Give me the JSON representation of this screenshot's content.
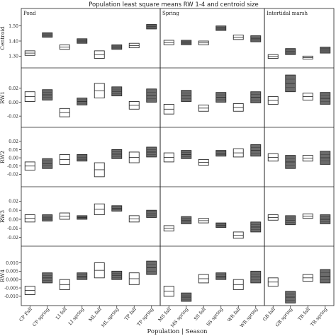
{
  "chart_data": {
    "type": "box",
    "title": "Population least square means RW 1-4 and centroid size",
    "xlabel": "Population | Season",
    "groups": [
      "Pond",
      "Spring",
      "Intertidal marsh"
    ],
    "categories": [
      "CP Fall",
      "CP spring",
      "LI fall",
      "LI spring",
      "ML fall",
      "ML spring",
      "TP fall",
      "TP spring",
      "MS fall",
      "MS spring",
      "SS fall",
      "SS spring",
      "WR fall",
      "WR spring",
      "GB fall",
      "GB spring",
      "TR fall",
      "TR spring"
    ],
    "category_group": [
      0,
      0,
      0,
      0,
      0,
      0,
      0,
      0,
      1,
      1,
      1,
      1,
      1,
      1,
      2,
      2,
      2,
      2
    ],
    "season": [
      "fall",
      "spring",
      "fall",
      "spring",
      "fall",
      "spring",
      "fall",
      "spring",
      "fall",
      "spring",
      "fall",
      "spring",
      "fall",
      "spring",
      "fall",
      "spring",
      "fall",
      "spring"
    ],
    "colors": {
      "spring_fill": "#6b6b6b",
      "spring_line": "#2a2a2a",
      "fall_fill": "#ffffff",
      "fall_line": "#2a2a2a",
      "divider": "#222222",
      "grid": "#dddddd"
    },
    "panels": [
      {
        "name": "Centroid",
        "ylim": [
          1.25,
          1.55
        ],
        "ticks": [
          1.3,
          1.4,
          1.5
        ],
        "tick_labels": [
          "1.30",
          "1.40",
          "1.50"
        ],
        "ranges": [
          [
            1.305,
            1.335
          ],
          [
            1.425,
            1.455
          ],
          [
            1.345,
            1.375
          ],
          [
            1.385,
            1.415
          ],
          [
            1.285,
            1.335
          ],
          [
            1.345,
            1.375
          ],
          [
            1.355,
            1.385
          ],
          [
            1.48,
            1.51
          ],
          [
            1.375,
            1.405
          ],
          [
            1.375,
            1.405
          ],
          [
            1.375,
            1.4
          ],
          [
            1.47,
            1.5
          ],
          [
            1.41,
            1.44
          ],
          [
            1.395,
            1.435
          ],
          [
            1.285,
            1.31
          ],
          [
            1.31,
            1.35
          ],
          [
            1.28,
            1.3
          ],
          [
            1.32,
            1.36
          ]
        ]
      },
      {
        "name": "RW1",
        "ylim": [
          -0.03,
          0.035
        ],
        "ticks": [
          -0.02,
          0.0,
          0.02
        ],
        "tick_labels": [
          "-0.02",
          "0.00",
          "0.02"
        ],
        "ranges": [
          [
            0.001,
            0.015
          ],
          [
            0.003,
            0.018
          ],
          [
            -0.021,
            -0.009
          ],
          [
            -0.004,
            0.006
          ],
          [
            0.006,
            0.027
          ],
          [
            0.009,
            0.022
          ],
          [
            -0.01,
            0.001
          ],
          [
            0.0,
            0.019
          ],
          [
            -0.017,
            -0.003
          ],
          [
            0.001,
            0.017
          ],
          [
            -0.013,
            -0.004
          ],
          [
            0.0,
            0.014
          ],
          [
            -0.013,
            -0.002
          ],
          [
            -0.001,
            0.015
          ],
          [
            -0.003,
            0.008
          ],
          [
            0.015,
            0.039
          ],
          [
            0.003,
            0.013
          ],
          [
            -0.003,
            0.014
          ]
        ]
      },
      {
        "name": "RW2",
        "ylim": [
          -0.03,
          0.025
        ],
        "ticks": [
          -0.02,
          -0.01,
          0.0,
          0.01,
          0.02
        ],
        "tick_labels": [
          "-0.02",
          "-0.01",
          "0.00",
          "0.01",
          "0.02"
        ],
        "ranges": [
          [
            -0.015,
            -0.005
          ],
          [
            -0.013,
            -0.001
          ],
          [
            -0.008,
            0.004
          ],
          [
            -0.004,
            0.004
          ],
          [
            -0.023,
            -0.006
          ],
          [
            -0.001,
            0.01
          ],
          [
            -0.006,
            0.007
          ],
          [
            0.001,
            0.013
          ],
          [
            -0.005,
            0.006
          ],
          [
            -0.001,
            0.009
          ],
          [
            -0.009,
            -0.002
          ],
          [
            0.002,
            0.009
          ],
          [
            0.001,
            0.011
          ],
          [
            0.002,
            0.016
          ],
          [
            -0.004,
            0.005
          ],
          [
            -0.013,
            0.003
          ],
          [
            -0.004,
            0.003
          ],
          [
            -0.008,
            0.008
          ]
        ]
      },
      {
        "name": "RW3",
        "ylim": [
          -0.025,
          0.025
        ],
        "ticks": [
          -0.02,
          -0.01,
          0.0,
          0.01,
          0.02
        ],
        "tick_labels": [
          "-0.02",
          "-0.01",
          "0.00",
          "0.01",
          "0.02"
        ],
        "ranges": [
          [
            -0.003,
            0.005
          ],
          [
            -0.002,
            0.005
          ],
          [
            0.0,
            0.007
          ],
          [
            0.0,
            0.004
          ],
          [
            0.005,
            0.017
          ],
          [
            0.009,
            0.015
          ],
          [
            -0.003,
            0.004
          ],
          [
            0.002,
            0.01
          ],
          [
            -0.013,
            -0.007
          ],
          [
            -0.005,
            0.003
          ],
          [
            -0.004,
            0.001
          ],
          [
            -0.009,
            -0.004
          ],
          [
            -0.021,
            -0.014
          ],
          [
            -0.014,
            -0.003
          ],
          [
            -0.001,
            0.005
          ],
          [
            -0.006,
            0.004
          ],
          [
            0.001,
            0.006
          ],
          [
            -0.005,
            0.005
          ]
        ]
      },
      {
        "name": "RW4",
        "ylim": [
          -0.013,
          0.014
        ],
        "ticks": [
          -0.01,
          -0.005,
          0.0,
          0.005,
          0.01
        ],
        "tick_labels": [
          "-0.010",
          "-0.005",
          "0.000",
          "0.005",
          "0.010"
        ],
        "ranges": [
          [
            -0.009,
            -0.004
          ],
          [
            -0.002,
            0.004
          ],
          [
            -0.006,
            0.0
          ],
          [
            0.0,
            0.004
          ],
          [
            0.001,
            0.01
          ],
          [
            0.0,
            0.005
          ],
          [
            -0.003,
            0.004
          ],
          [
            0.003,
            0.011
          ],
          [
            -0.01,
            -0.004
          ],
          [
            -0.013,
            -0.008
          ],
          [
            -0.002,
            0.003
          ],
          [
            0.0,
            0.004
          ],
          [
            -0.006,
            0.0
          ],
          [
            -0.002,
            0.005
          ],
          [
            -0.004,
            0.001
          ],
          [
            -0.014,
            -0.007
          ],
          [
            -0.001,
            0.003
          ],
          [
            -0.002,
            0.006
          ]
        ]
      }
    ]
  }
}
